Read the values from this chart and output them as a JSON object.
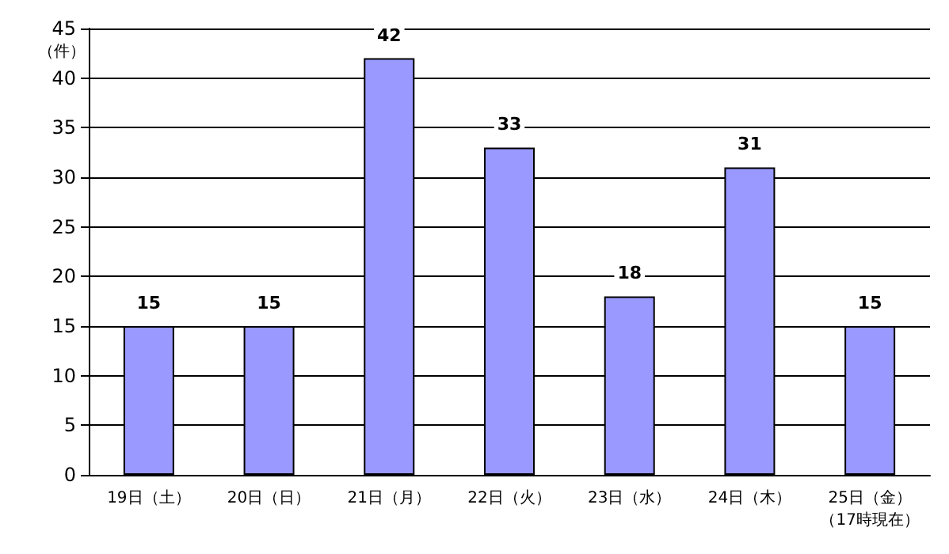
{
  "chart_data": {
    "type": "bar",
    "ylabel": "（件）",
    "categories": [
      "19日（土）",
      "20日（日）",
      "21日（月）",
      "22日（火）",
      "23日（水）",
      "24日（木）",
      "25日（金）（17時現在）"
    ],
    "values": [
      15,
      15,
      42,
      33,
      18,
      31,
      15
    ],
    "color": "#9999ff",
    "ylim": [
      0,
      45
    ],
    "yticks": [
      0,
      5,
      10,
      15,
      20,
      25,
      30,
      35,
      40,
      45
    ],
    "grid": "y",
    "data_labels": true
  }
}
